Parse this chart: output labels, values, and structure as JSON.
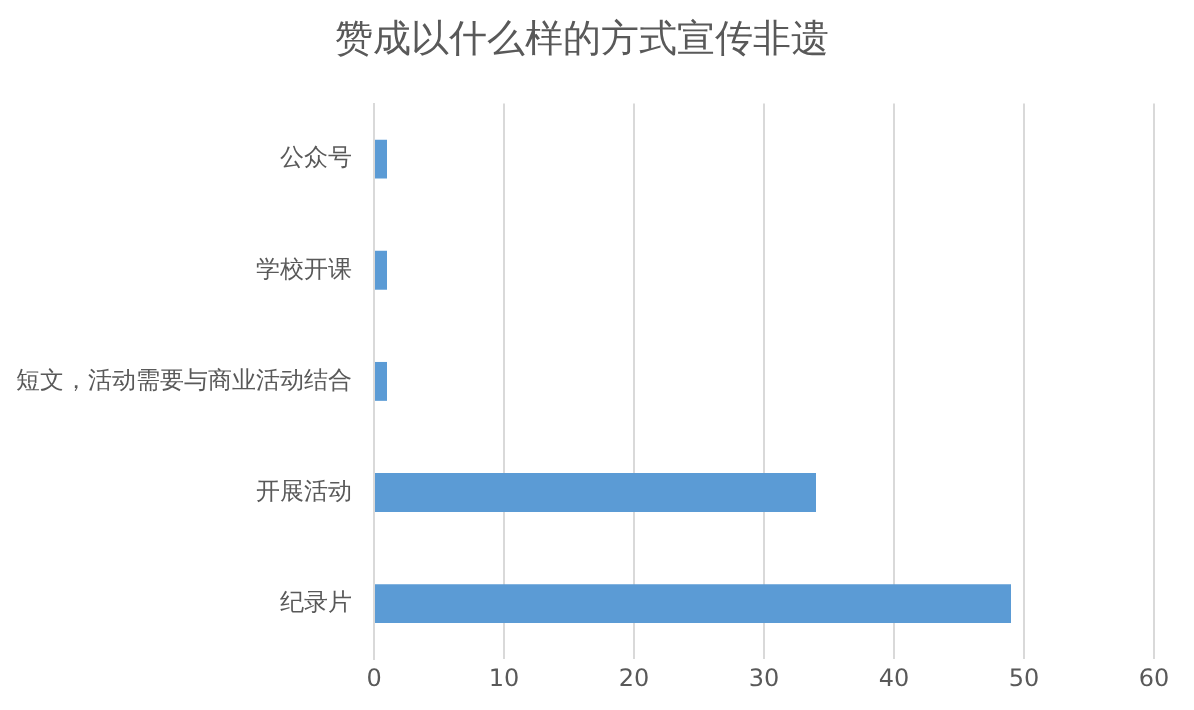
{
  "chart_data": {
    "type": "bar",
    "title": "赞成以什么样的方式宣传非遗",
    "orientation": "horizontal",
    "categories": [
      "公众号",
      "学校开课",
      "短文，活动需要与商业活动结合",
      "开展活动",
      "纪录片"
    ],
    "values": [
      1,
      1,
      1,
      34,
      49
    ],
    "color": "#5b9bd5",
    "xlim": [
      0,
      60
    ],
    "xticks": [
      0,
      10,
      20,
      30,
      40,
      50,
      60
    ],
    "grid": "x"
  }
}
